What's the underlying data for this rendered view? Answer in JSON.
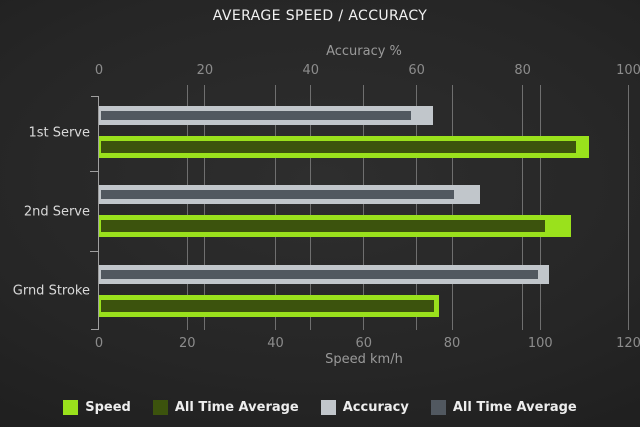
{
  "title": "AVERAGE SPEED / ACCURACY",
  "colors": {
    "speed": "#9ae11c",
    "speed_avg": "#3c530d",
    "accuracy": "#c1c6cb",
    "accuracy_avg": "#515860",
    "gridline": "#6f6f6f",
    "axis": "#9f9f9f"
  },
  "chart_data": {
    "type": "bar",
    "orientation": "horizontal",
    "title": "AVERAGE SPEED / ACCURACY",
    "categories": [
      "1st Serve",
      "2nd Serve",
      "Grnd Stroke"
    ],
    "axes": {
      "top": {
        "label": "Accuracy %",
        "min": 0,
        "max": 100,
        "ticks": [
          0,
          20,
          40,
          60,
          80,
          100
        ]
      },
      "bottom": {
        "label": "Speed km/h",
        "min": 0,
        "max": 120,
        "ticks": [
          0,
          20,
          40,
          60,
          80,
          100,
          120
        ]
      }
    },
    "series": [
      {
        "name": "Speed",
        "axis": "bottom",
        "color": "#9ae11c",
        "values": [
          111,
          107,
          77
        ]
      },
      {
        "name": "All Time Average",
        "axis": "bottom",
        "color": "#3c530d",
        "values": [
          108,
          101,
          76
        ]
      },
      {
        "name": "Accuracy",
        "axis": "top",
        "color": "#c1c6cb",
        "values": [
          63,
          72,
          85
        ]
      },
      {
        "name": "All Time Average",
        "axis": "top",
        "color": "#515860",
        "values": [
          59,
          67,
          83
        ]
      }
    ],
    "legend": [
      {
        "label": "Speed",
        "color": "#9ae11c"
      },
      {
        "label": "All Time Average",
        "color": "#3c530d"
      },
      {
        "label": "Accuracy",
        "color": "#c1c6cb"
      },
      {
        "label": "All Time Average",
        "color": "#515860"
      }
    ],
    "grid": true,
    "legend_position": "bottom"
  }
}
